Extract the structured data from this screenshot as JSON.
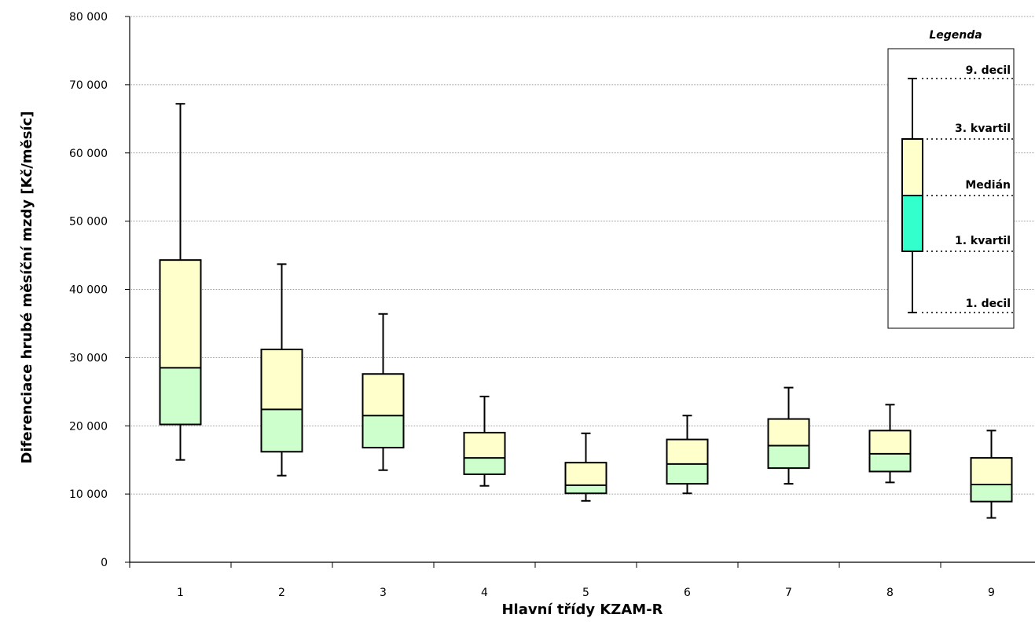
{
  "chart_data": {
    "type": "boxplot",
    "xlabel": "Hlavní třídy KZAM-R",
    "ylabel": "Diferenciace hrubé měsíční mzdy [Kč/měsíc]",
    "ylim": [
      0,
      80000
    ],
    "yticks": [
      0,
      10000,
      20000,
      30000,
      40000,
      50000,
      60000,
      70000,
      80000
    ],
    "ytick_labels": [
      "0",
      "10 000",
      "20 000",
      "30 000",
      "40 000",
      "50 000",
      "60 000",
      "70 000",
      "80 000"
    ],
    "grid": "horizontal",
    "categories": [
      "1",
      "2",
      "3",
      "4",
      "5",
      "6",
      "7",
      "8",
      "9"
    ],
    "boxes": [
      {
        "category": "1",
        "decil1": 15000,
        "kvartil1": 20200,
        "median": 28500,
        "kvartil3": 44300,
        "decil9": 67200
      },
      {
        "category": "2",
        "decil1": 12700,
        "kvartil1": 16200,
        "median": 22400,
        "kvartil3": 31200,
        "decil9": 43700
      },
      {
        "category": "3",
        "decil1": 13500,
        "kvartil1": 16800,
        "median": 21500,
        "kvartil3": 27600,
        "decil9": 36400
      },
      {
        "category": "4",
        "decil1": 11200,
        "kvartil1": 12900,
        "median": 15300,
        "kvartil3": 19000,
        "decil9": 24300
      },
      {
        "category": "5",
        "decil1": 9000,
        "kvartil1": 10100,
        "median": 11300,
        "kvartil3": 14600,
        "decil9": 18900
      },
      {
        "category": "6",
        "decil1": 10100,
        "kvartil1": 11500,
        "median": 14400,
        "kvartil3": 18000,
        "decil9": 21500
      },
      {
        "category": "7",
        "decil1": 11500,
        "kvartil1": 13800,
        "median": 17100,
        "kvartil3": 21000,
        "decil9": 25600
      },
      {
        "category": "8",
        "decil1": 11700,
        "kvartil1": 13300,
        "median": 15900,
        "kvartil3": 19300,
        "decil9": 23100
      },
      {
        "category": "9",
        "decil1": 6500,
        "kvartil1": 8900,
        "median": 11400,
        "kvartil3": 15300,
        "decil9": 19300
      }
    ],
    "colors": {
      "upper_box": "#ffffcc",
      "lower_box": "#ccffcc",
      "legend_lower_box": "#33ffcc",
      "gridline": "#808080",
      "stroke": "#000000"
    },
    "legend": {
      "title": "Legenda",
      "placement": "top-right",
      "labels": {
        "decil9": "9. decil",
        "kvartil3": "3. kvartil",
        "median": "Medián",
        "kvartil1": "1. kvartil",
        "decil1": "1. decil"
      }
    }
  }
}
